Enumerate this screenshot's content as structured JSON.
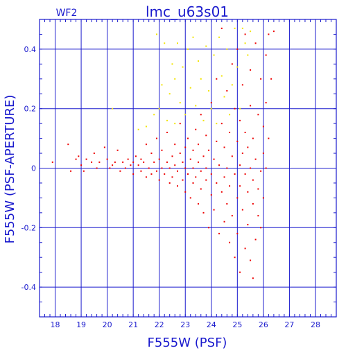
{
  "chart_data": {
    "type": "scatter",
    "title": "lmc_u63s01",
    "panel_label": "WF2",
    "xlabel": "F555W (PSF)",
    "ylabel": "F555W (PSF-APERTURE)",
    "xlim": [
      17.4,
      28.8
    ],
    "ylim": [
      -0.5,
      0.5
    ],
    "x_ticks": [
      18,
      19,
      20,
      21,
      22,
      23,
      24,
      25,
      26,
      27,
      28
    ],
    "x_tick_labels": [
      "18",
      "19",
      "20",
      "21",
      "22",
      "23",
      "24",
      "25",
      "26",
      "27",
      "28"
    ],
    "y_ticks": [
      -0.4,
      -0.2,
      0,
      0.2,
      0.4
    ],
    "y_tick_labels": [
      "-0.4",
      "-0.2",
      "0",
      "0.2",
      "0.4"
    ],
    "grid": true,
    "colors": {
      "axes": "#1a1acd",
      "main_series": "#ee0000",
      "outlier_series": "#f2e400"
    },
    "series": [
      {
        "role": "main",
        "color": "#ee0000",
        "points": [
          [
            17.9,
            0.02
          ],
          [
            18.5,
            0.08
          ],
          [
            18.6,
            -0.01
          ],
          [
            18.8,
            0.03
          ],
          [
            18.9,
            0.04
          ],
          [
            19.0,
            0.01
          ],
          [
            19.1,
            -0.01
          ],
          [
            19.2,
            0.03
          ],
          [
            19.4,
            0.02
          ],
          [
            19.5,
            0.05
          ],
          [
            19.6,
            0.0
          ],
          [
            19.7,
            0.02
          ],
          [
            19.9,
            0.07
          ],
          [
            20.0,
            0.03
          ],
          [
            20.1,
            0.0
          ],
          [
            20.2,
            0.01
          ],
          [
            20.3,
            0.02
          ],
          [
            20.4,
            0.06
          ],
          [
            20.5,
            -0.01
          ],
          [
            20.6,
            0.02
          ],
          [
            20.7,
            0.0
          ],
          [
            20.8,
            0.03
          ],
          [
            20.9,
            0.01
          ],
          [
            21.0,
            0.02
          ],
          [
            21.0,
            -0.02
          ],
          [
            21.1,
            0.04
          ],
          [
            21.2,
            0.01
          ],
          [
            21.3,
            -0.01
          ],
          [
            21.3,
            0.03
          ],
          [
            21.4,
            0.02
          ],
          [
            21.5,
            0.08
          ],
          [
            21.5,
            -0.03
          ],
          [
            21.6,
            0.0
          ],
          [
            21.7,
            0.05
          ],
          [
            21.7,
            -0.02
          ],
          [
            21.8,
            0.02
          ],
          [
            21.9,
            0.1
          ],
          [
            21.9,
            -0.01
          ],
          [
            22.0,
            0.03
          ],
          [
            22.0,
            -0.04
          ],
          [
            22.1,
            0.06
          ],
          [
            22.1,
            0.0
          ],
          [
            22.2,
            -0.02
          ],
          [
            22.3,
            0.02
          ],
          [
            22.3,
            0.12
          ],
          [
            22.4,
            -0.05
          ],
          [
            22.4,
            0.0
          ],
          [
            22.5,
            0.04
          ],
          [
            22.5,
            -0.03
          ],
          [
            22.6,
            0.08
          ],
          [
            22.6,
            0.01
          ],
          [
            22.7,
            -0.06
          ],
          [
            22.7,
            -0.01
          ],
          [
            22.8,
            0.05
          ],
          [
            22.8,
            0.15
          ],
          [
            22.9,
            -0.04
          ],
          [
            22.9,
            0.02
          ],
          [
            23.0,
            -0.08
          ],
          [
            23.0,
            0.0
          ],
          [
            23.0,
            0.07
          ],
          [
            23.1,
            -0.02
          ],
          [
            23.1,
            0.1
          ],
          [
            23.2,
            0.03
          ],
          [
            23.2,
            -0.1
          ],
          [
            23.3,
            0.0
          ],
          [
            23.3,
            0.06
          ],
          [
            23.3,
            -0.05
          ],
          [
            23.4,
            0.13
          ],
          [
            23.4,
            -0.03
          ],
          [
            23.5,
            0.02
          ],
          [
            23.5,
            -0.12
          ],
          [
            23.5,
            0.08
          ],
          [
            23.6,
            -0.01
          ],
          [
            23.6,
            0.18
          ],
          [
            23.6,
            -0.07
          ],
          [
            23.7,
            0.04
          ],
          [
            23.7,
            -0.15
          ],
          [
            23.8,
            0.0
          ],
          [
            23.8,
            0.11
          ],
          [
            23.8,
            -0.04
          ],
          [
            23.9,
            -0.2
          ],
          [
            23.9,
            0.06
          ],
          [
            24.0,
            -0.02
          ],
          [
            24.0,
            0.22
          ],
          [
            24.0,
            -0.09
          ],
          [
            24.1,
            0.03
          ],
          [
            24.1,
            -0.14
          ],
          [
            24.2,
            0.09
          ],
          [
            24.2,
            -0.05
          ],
          [
            24.2,
            0.3
          ],
          [
            24.3,
            -0.22
          ],
          [
            24.3,
            0.01
          ],
          [
            24.4,
            0.15
          ],
          [
            24.4,
            -0.08
          ],
          [
            24.4,
            0.47
          ],
          [
            24.5,
            -0.03
          ],
          [
            24.5,
            -0.18
          ],
          [
            24.5,
            0.07
          ],
          [
            24.6,
            0.26
          ],
          [
            24.6,
            -0.12
          ],
          [
            24.6,
            0.0
          ],
          [
            24.7,
            -0.25
          ],
          [
            24.7,
            0.12
          ],
          [
            24.7,
            -0.06
          ],
          [
            24.8,
            0.35
          ],
          [
            24.8,
            0.04
          ],
          [
            24.8,
            -0.16
          ],
          [
            24.9,
            -0.3
          ],
          [
            24.9,
            0.2
          ],
          [
            24.9,
            -0.02
          ],
          [
            25.0,
            -0.1
          ],
          [
            25.0,
            0.09
          ],
          [
            25.0,
            0.4
          ],
          [
            25.0,
            -0.22
          ],
          [
            25.1,
            0.01
          ],
          [
            25.1,
            -0.35
          ],
          [
            25.1,
            0.16
          ],
          [
            25.1,
            -0.06
          ],
          [
            25.2,
            0.28
          ],
          [
            25.2,
            -0.14
          ],
          [
            25.2,
            0.05
          ],
          [
            25.3,
            -0.27
          ],
          [
            25.3,
            0.45
          ],
          [
            25.3,
            -0.02
          ],
          [
            25.3,
            0.12
          ],
          [
            25.4,
            -0.19
          ],
          [
            25.4,
            0.07
          ],
          [
            25.4,
            -0.08
          ],
          [
            25.5,
            0.33
          ],
          [
            25.5,
            -0.31
          ],
          [
            25.5,
            0.0
          ],
          [
            25.5,
            0.21
          ],
          [
            25.6,
            -0.12
          ],
          [
            25.6,
            -0.37
          ],
          [
            25.6,
            0.1
          ],
          [
            25.6,
            -0.04
          ],
          [
            25.7,
            0.42
          ],
          [
            25.7,
            -0.24
          ],
          [
            25.7,
            0.03
          ],
          [
            25.8,
            -0.16
          ],
          [
            25.8,
            0.18
          ],
          [
            25.8,
            -0.07
          ],
          [
            25.9,
            0.3
          ],
          [
            25.9,
            -0.01
          ],
          [
            25.9,
            -0.2
          ],
          [
            26.0,
            0.14
          ],
          [
            26.0,
            0.05
          ],
          [
            26.0,
            -0.1
          ],
          [
            26.1,
            0.38
          ],
          [
            26.1,
            0.22
          ],
          [
            26.1,
            0.0
          ],
          [
            26.2,
            0.45
          ],
          [
            26.2,
            0.1
          ],
          [
            26.3,
            0.3
          ],
          [
            26.4,
            0.46
          ]
        ]
      },
      {
        "role": "outliers",
        "color": "#f2e400",
        "points": [
          [
            20.2,
            0.2
          ],
          [
            21.2,
            0.13
          ],
          [
            21.5,
            0.14
          ],
          [
            21.8,
            0.18
          ],
          [
            21.9,
            0.45
          ],
          [
            22.0,
            0.2
          ],
          [
            22.1,
            0.28
          ],
          [
            22.2,
            0.42
          ],
          [
            22.3,
            0.16
          ],
          [
            22.4,
            0.25
          ],
          [
            22.5,
            0.35
          ],
          [
            22.6,
            0.15
          ],
          [
            22.6,
            0.3
          ],
          [
            22.7,
            0.42
          ],
          [
            22.8,
            0.22
          ],
          [
            22.9,
            0.34
          ],
          [
            23.0,
            0.18
          ],
          [
            23.1,
            0.4
          ],
          [
            23.2,
            0.27
          ],
          [
            23.3,
            0.44
          ],
          [
            23.4,
            0.21
          ],
          [
            23.5,
            0.36
          ],
          [
            23.6,
            0.3
          ],
          [
            23.7,
            0.16
          ],
          [
            23.8,
            0.41
          ],
          [
            23.9,
            0.26
          ],
          [
            24.0,
            0.2
          ],
          [
            24.1,
            0.38
          ],
          [
            24.2,
            0.15
          ],
          [
            24.3,
            0.44
          ],
          [
            24.4,
            0.31
          ],
          [
            24.5,
            0.24
          ],
          [
            24.6,
            0.4
          ],
          [
            24.7,
            0.18
          ],
          [
            24.8,
            0.28
          ],
          [
            24.9,
            0.47
          ],
          [
            25.0,
            0.34
          ],
          [
            25.1,
            0.2
          ],
          [
            25.2,
            0.47
          ],
          [
            25.3,
            0.42
          ],
          [
            25.4,
            0.38
          ],
          [
            25.5,
            0.46
          ]
        ]
      }
    ]
  }
}
